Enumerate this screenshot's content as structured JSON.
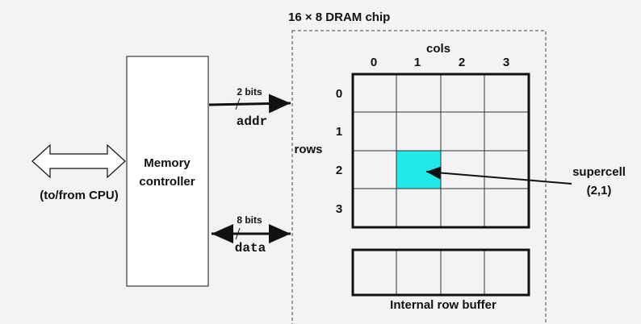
{
  "title": "16 × 8 DRAM chip",
  "memory_controller": {
    "label": [
      "Memory",
      "controller"
    ]
  },
  "cpu": {
    "label": "(to/from CPU)"
  },
  "addr_bus": {
    "width": "2 bits",
    "label": "addr"
  },
  "data_bus": {
    "width": "8 bits",
    "label": "data"
  },
  "array": {
    "cols_label": "cols",
    "rows_label": "rows",
    "col_labels": [
      "0",
      "1",
      "2",
      "3"
    ],
    "row_labels": [
      "0",
      "1",
      "2",
      "3"
    ]
  },
  "supercell": {
    "label": [
      "supercell",
      "(2,1)"
    ]
  },
  "row_buffer": {
    "label": "Internal row buffer"
  }
}
